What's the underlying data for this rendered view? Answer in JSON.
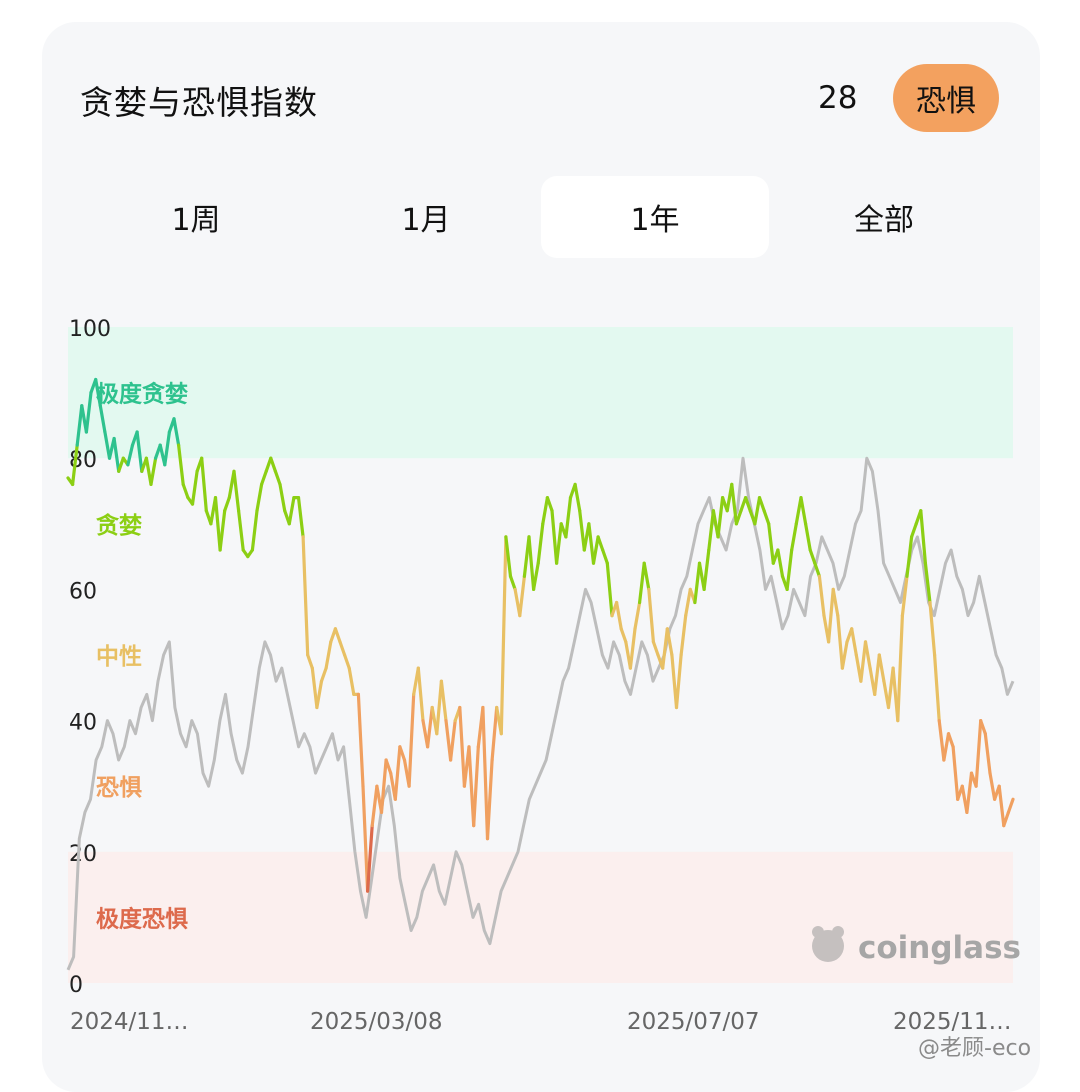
{
  "header": {
    "title": "贪婪与恐惧指数",
    "score": "28",
    "badge": "恐惧"
  },
  "colors": {
    "badge": "#f3a15f",
    "extreme_greed": "#2ec28e",
    "greed": "#8ccf14",
    "neutral": "#e8c064",
    "fear": "#f0a060",
    "extreme_fear": "#dd6a4c",
    "price": "#bdbdbd"
  },
  "tabs": [
    {
      "label": "1周",
      "active": false
    },
    {
      "label": "1月",
      "active": false
    },
    {
      "label": "1年",
      "active": true
    },
    {
      "label": "全部",
      "active": false
    }
  ],
  "chart_data": {
    "type": "line",
    "ylim": [
      0,
      100
    ],
    "yticks": [
      "100",
      "80",
      "60",
      "40",
      "20",
      "0"
    ],
    "xticks": [
      "2024/11…",
      "2025/03/08",
      "2025/07/07",
      "2025/11…"
    ],
    "zones": [
      {
        "label": "极度贪婪",
        "range": [
          80,
          100
        ],
        "color": "#2ec28e"
      },
      {
        "label": "贪婪",
        "range": [
          60,
          80
        ],
        "color": "#8ccf14"
      },
      {
        "label": "中性",
        "range": [
          40,
          60
        ],
        "color": "#e8c064"
      },
      {
        "label": "恐惧",
        "range": [
          20,
          40
        ],
        "color": "#f0a060"
      },
      {
        "label": "极度恐惧",
        "range": [
          0,
          20
        ],
        "color": "#dd6a4c"
      }
    ],
    "series": [
      {
        "role": "index",
        "values": [
          77,
          76,
          82,
          88,
          84,
          90,
          92,
          88,
          84,
          80,
          83,
          78,
          80,
          79,
          82,
          84,
          78,
          80,
          76,
          80,
          82,
          79,
          84,
          86,
          82,
          76,
          74,
          73,
          78,
          80,
          72,
          70,
          74,
          66,
          72,
          74,
          78,
          72,
          66,
          65,
          66,
          72,
          76,
          78,
          80,
          78,
          76,
          72,
          70,
          74,
          74,
          68,
          50,
          48,
          42,
          46,
          48,
          52,
          54,
          52,
          50,
          48,
          44,
          44,
          30,
          14,
          24,
          30,
          26,
          34,
          32,
          28,
          36,
          34,
          30,
          44,
          48,
          40,
          36,
          42,
          38,
          46,
          40,
          34,
          40,
          42,
          30,
          36,
          24,
          36,
          42,
          22,
          34,
          42,
          38,
          68,
          62,
          60,
          56,
          62,
          68,
          60,
          64,
          70,
          74,
          72,
          64,
          70,
          68,
          74,
          76,
          72,
          66,
          70,
          64,
          68,
          66,
          64,
          56,
          58,
          54,
          52,
          48,
          54,
          58,
          64,
          60,
          52,
          50,
          48,
          54,
          50,
          42,
          50,
          56,
          60,
          58,
          64,
          60,
          66,
          72,
          68,
          74,
          72,
          76,
          70,
          72,
          74,
          72,
          70,
          74,
          72,
          70,
          64,
          66,
          62,
          60,
          66,
          70,
          74,
          70,
          66,
          64,
          62,
          56,
          52,
          60,
          56,
          48,
          52,
          54,
          50,
          46,
          52,
          48,
          44,
          50,
          46,
          42,
          48,
          40,
          56,
          62,
          68,
          70,
          72,
          64,
          58,
          50,
          40,
          34,
          38,
          36,
          28,
          30,
          26,
          32,
          30,
          40,
          38,
          32,
          28,
          30,
          24,
          26,
          28
        ],
        "note": ""
      },
      {
        "role": "price",
        "values": [
          2,
          4,
          22,
          26,
          28,
          34,
          36,
          40,
          38,
          34,
          36,
          40,
          38,
          42,
          44,
          40,
          46,
          50,
          52,
          42,
          38,
          36,
          40,
          38,
          32,
          30,
          34,
          40,
          44,
          38,
          34,
          32,
          36,
          42,
          48,
          52,
          50,
          46,
          48,
          44,
          40,
          36,
          38,
          36,
          32,
          34,
          36,
          38,
          34,
          36,
          28,
          20,
          14,
          10,
          16,
          22,
          28,
          30,
          24,
          16,
          12,
          8,
          10,
          14,
          16,
          18,
          14,
          12,
          16,
          20,
          18,
          14,
          10,
          12,
          8,
          6,
          10,
          14,
          16,
          18,
          20,
          24,
          28,
          30,
          32,
          34,
          38,
          42,
          46,
          48,
          52,
          56,
          60,
          58,
          54,
          50,
          48,
          52,
          50,
          46,
          44,
          48,
          52,
          50,
          46,
          48,
          50,
          54,
          56,
          60,
          62,
          66,
          70,
          72,
          74,
          70,
          68,
          66,
          70,
          72,
          80,
          74,
          70,
          66,
          60,
          62,
          58,
          54,
          56,
          60,
          58,
          56,
          62,
          64,
          68,
          66,
          64,
          60,
          62,
          66,
          70,
          72,
          80,
          78,
          72,
          64,
          62,
          60,
          58,
          62,
          66,
          68,
          64,
          58,
          56,
          60,
          64,
          66,
          62,
          60,
          56,
          58,
          62,
          58,
          54,
          50,
          48,
          44,
          46
        ],
        "note": ""
      }
    ]
  },
  "watermark": {
    "brand": "coinglass",
    "source": "@老顾-eco"
  }
}
